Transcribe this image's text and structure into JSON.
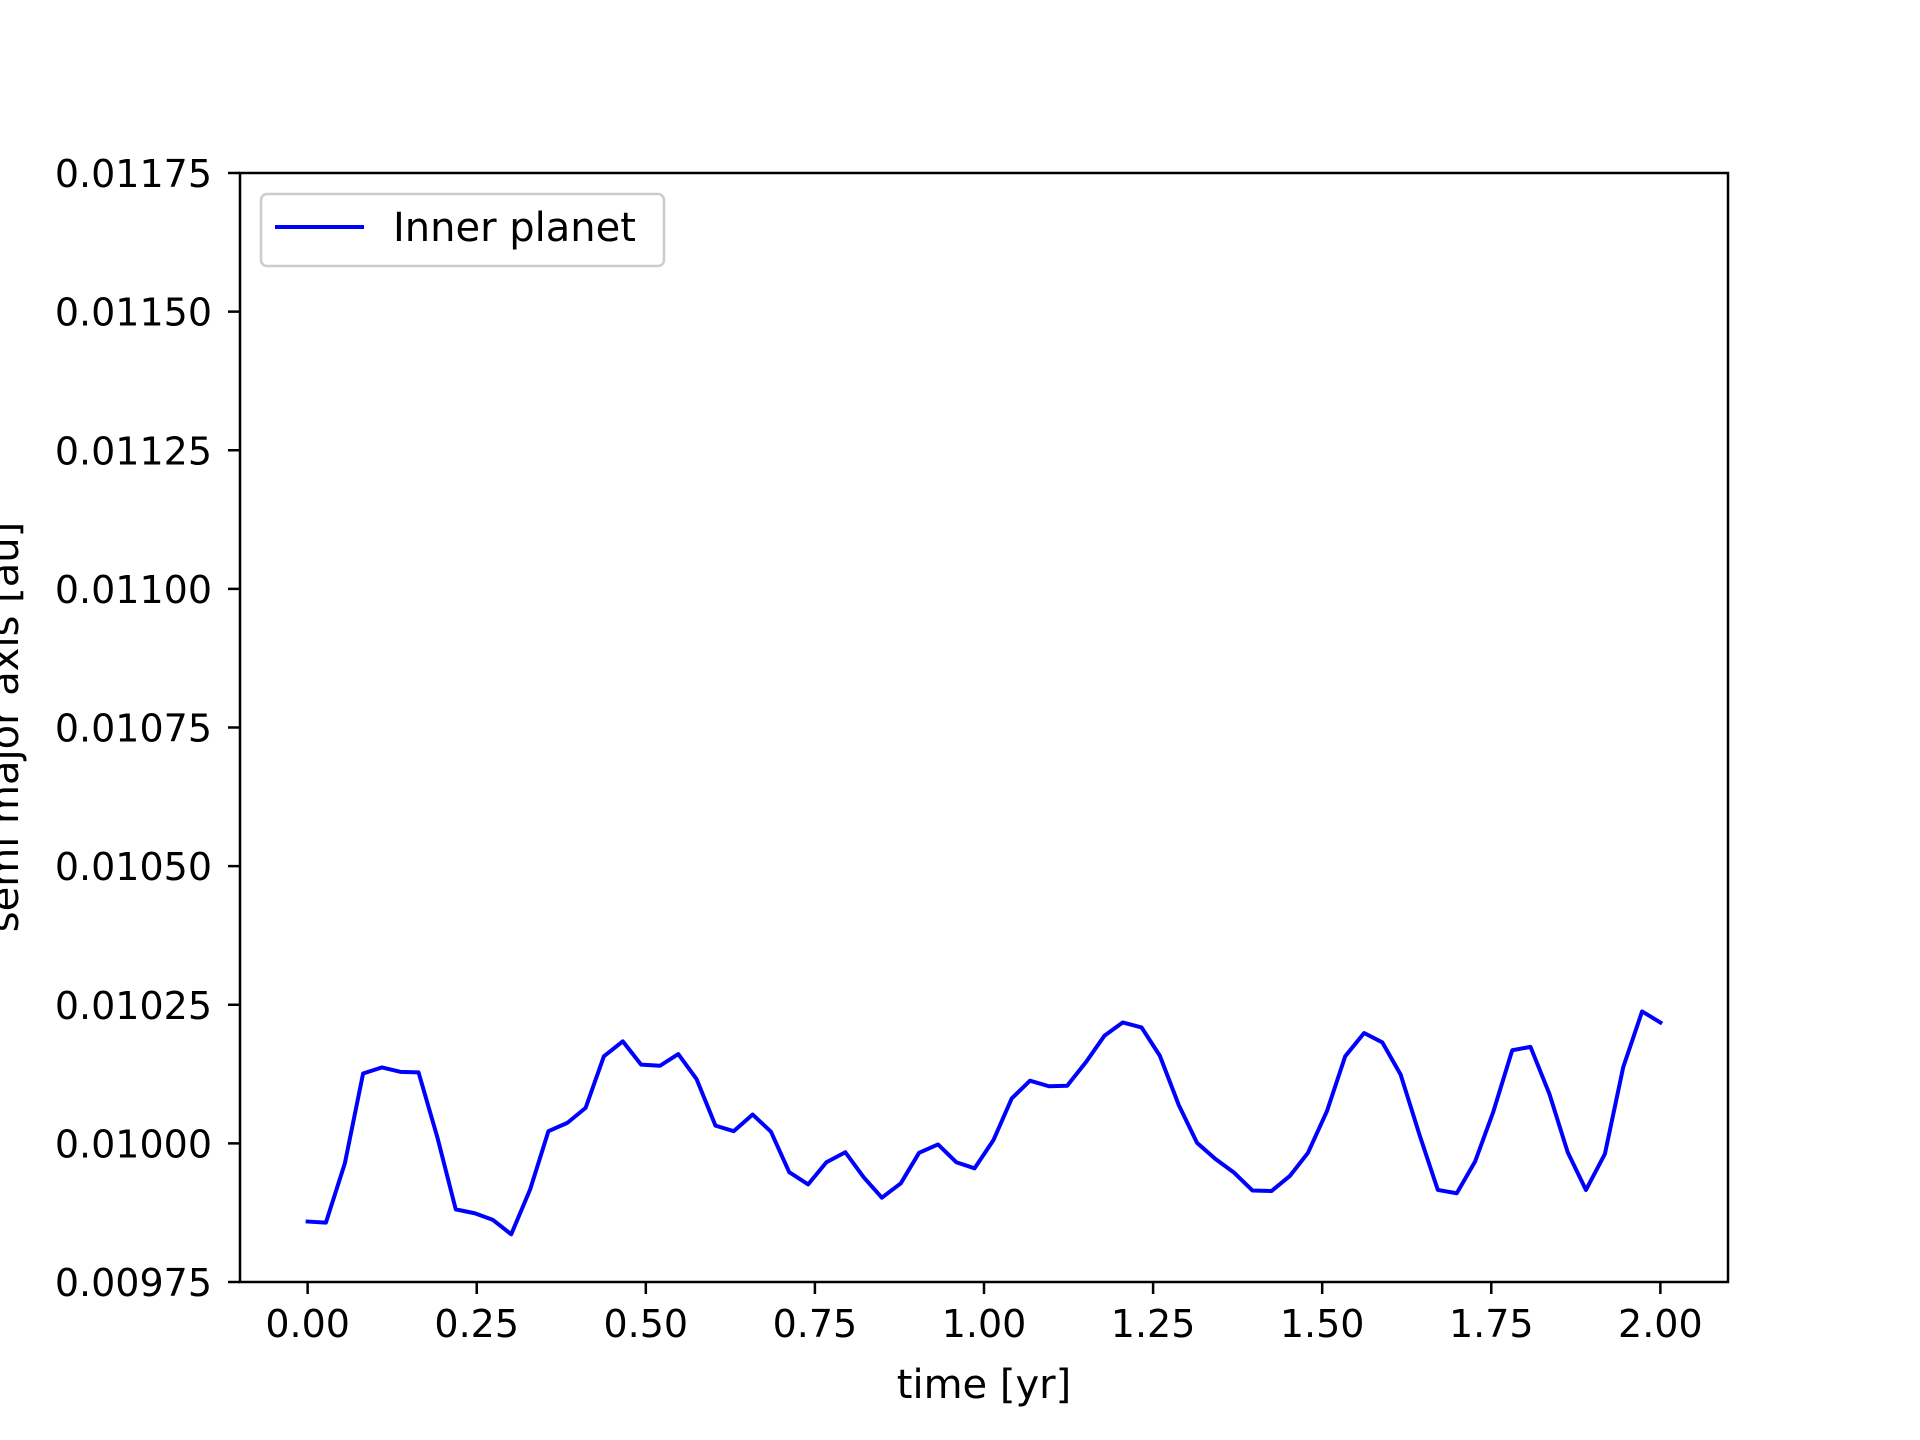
{
  "chart_data": {
    "type": "line",
    "xlabel": "time [yr]",
    "ylabel": "semi major axis [au]",
    "xlim": [
      -0.1,
      2.1
    ],
    "ylim": [
      0.00975,
      0.01175
    ],
    "xticks": [
      0.0,
      0.25,
      0.5,
      0.75,
      1.0,
      1.25,
      1.5,
      1.75,
      2.0
    ],
    "xtick_labels": [
      "0.00",
      "0.25",
      "0.50",
      "0.75",
      "1.00",
      "1.25",
      "1.50",
      "1.75",
      "2.00"
    ],
    "yticks": [
      0.00975,
      0.01,
      0.01025,
      0.0105,
      0.01075,
      0.011,
      0.01125,
      0.0115,
      0.01175
    ],
    "ytick_labels": [
      "0.00975",
      "0.01000",
      "0.01025",
      "0.01050",
      "0.01075",
      "0.01100",
      "0.01125",
      "0.01150",
      "0.01175"
    ],
    "grid": false,
    "legend_position": "top-left",
    "series": [
      {
        "name": "Inner planet",
        "color": "#0000ff",
        "x": [
          0.0,
          0.027,
          0.055,
          0.082,
          0.11,
          0.137,
          0.164,
          0.192,
          0.219,
          0.247,
          0.274,
          0.301,
          0.329,
          0.356,
          0.384,
          0.411,
          0.438,
          0.466,
          0.493,
          0.521,
          0.548,
          0.575,
          0.603,
          0.63,
          0.658,
          0.685,
          0.712,
          0.74,
          0.767,
          0.795,
          0.822,
          0.849,
          0.877,
          0.904,
          0.932,
          0.959,
          0.986,
          1.014,
          1.041,
          1.068,
          1.096,
          1.123,
          1.151,
          1.178,
          1.205,
          1.233,
          1.26,
          1.288,
          1.315,
          1.342,
          1.37,
          1.397,
          1.425,
          1.452,
          1.479,
          1.507,
          1.534,
          1.562,
          1.589,
          1.616,
          1.644,
          1.671,
          1.699,
          1.726,
          1.753,
          1.781,
          1.808,
          1.836,
          1.863,
          1.89,
          1.918,
          1.945,
          1.973,
          2.0
        ],
        "y": [
          0.009859,
          0.009857,
          0.009964,
          0.010126,
          0.010137,
          0.010129,
          0.010128,
          0.01001,
          0.009881,
          0.009874,
          0.009862,
          0.009836,
          0.009917,
          0.010022,
          0.010037,
          0.010064,
          0.010157,
          0.010184,
          0.010142,
          0.01014,
          0.010161,
          0.010116,
          0.010032,
          0.010022,
          0.010052,
          0.010021,
          0.009948,
          0.009926,
          0.009966,
          0.009984,
          0.009939,
          0.009902,
          0.009928,
          0.009983,
          0.009998,
          0.009966,
          0.009955,
          0.010006,
          0.010081,
          0.010113,
          0.010103,
          0.010104,
          0.010147,
          0.010194,
          0.010218,
          0.010209,
          0.010158,
          0.010069,
          0.010001,
          0.009972,
          0.009947,
          0.009915,
          0.009914,
          0.009941,
          0.009983,
          0.010058,
          0.010157,
          0.010199,
          0.010182,
          0.010124,
          0.010015,
          0.009916,
          0.00991,
          0.009967,
          0.010057,
          0.010168,
          0.010174,
          0.010089,
          0.009984,
          0.009916,
          0.009981,
          0.010137,
          0.010238,
          0.010218
        ]
      }
    ]
  }
}
